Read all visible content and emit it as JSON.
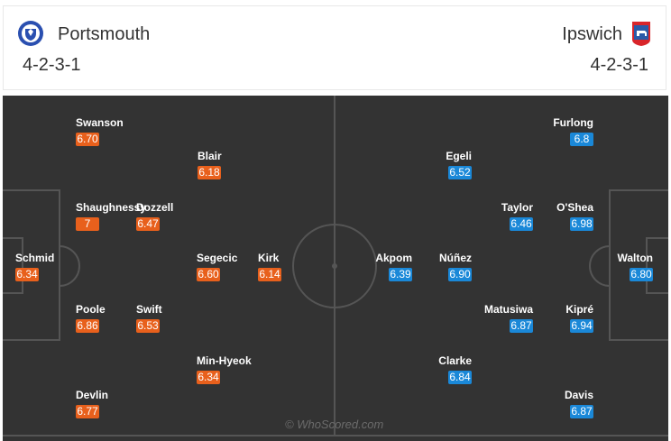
{
  "home": {
    "name": "Portsmouth",
    "formation": "4-2-3-1",
    "crest_icon": "portsmouth-crest-icon",
    "color": "#e8601c",
    "players": [
      {
        "name": "Swanson",
        "rating": "6.70"
      },
      {
        "name": "Blair",
        "rating": "6.18"
      },
      {
        "name": "Shaughnessy",
        "rating": "7"
      },
      {
        "name": "Dozzell",
        "rating": "6.47"
      },
      {
        "name": "Schmid",
        "rating": "6.34"
      },
      {
        "name": "Segecic",
        "rating": "6.60"
      },
      {
        "name": "Kirk",
        "rating": "6.14"
      },
      {
        "name": "Poole",
        "rating": "6.86"
      },
      {
        "name": "Swift",
        "rating": "6.53"
      },
      {
        "name": "Min-Hyeok",
        "rating": "6.34"
      },
      {
        "name": "Devlin",
        "rating": "6.77"
      }
    ]
  },
  "away": {
    "name": "Ipswich",
    "formation": "4-2-3-1",
    "crest_icon": "ipswich-crest-icon",
    "color": "#1a88d8",
    "players": [
      {
        "name": "Furlong",
        "rating": "6.8"
      },
      {
        "name": "Egeli",
        "rating": "6.52"
      },
      {
        "name": "Taylor",
        "rating": "6.46"
      },
      {
        "name": "O'Shea",
        "rating": "6.98"
      },
      {
        "name": "Walton",
        "rating": "6.80"
      },
      {
        "name": "Akpom",
        "rating": "6.39"
      },
      {
        "name": "Núñez",
        "rating": "6.90"
      },
      {
        "name": "Matusiwa",
        "rating": "6.87"
      },
      {
        "name": "Kipré",
        "rating": "6.94"
      },
      {
        "name": "Clarke",
        "rating": "6.84"
      },
      {
        "name": "Davis",
        "rating": "6.87"
      }
    ]
  },
  "watermark": "© WhoScored.com"
}
